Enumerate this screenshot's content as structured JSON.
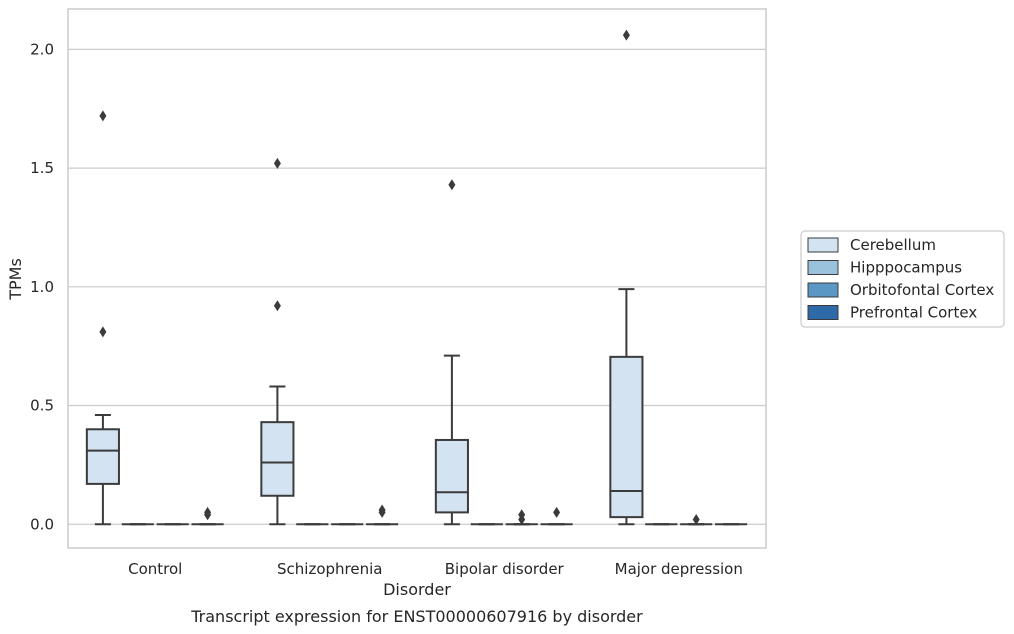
{
  "chart_data": {
    "type": "box",
    "caption": "Transcript expression for ENST00000607916 by disorder",
    "xlabel": "Disorder",
    "ylabel": "TPMs",
    "ylim": [
      -0.1,
      2.17
    ],
    "yticks": [
      0.0,
      0.5,
      1.0,
      1.5,
      2.0
    ],
    "ytick_labels": [
      "0.0",
      "0.5",
      "1.0",
      "1.5",
      "2.0"
    ],
    "grid": true,
    "legend_position": "right",
    "categories": [
      "Control",
      "Schizophrenia",
      "Bipolar disorder",
      "Major depression"
    ],
    "series": [
      {
        "name": "Cerebellum",
        "color": "#d3e3f2",
        "boxes": [
          {
            "whisker_low": 0.0,
            "q1": 0.17,
            "median": 0.31,
            "q3": 0.4,
            "whisker_high": 0.46,
            "outliers": [
              0.81,
              1.72
            ]
          },
          {
            "whisker_low": 0.0,
            "q1": 0.12,
            "median": 0.26,
            "q3": 0.43,
            "whisker_high": 0.58,
            "outliers": [
              0.92,
              1.52
            ]
          },
          {
            "whisker_low": 0.0,
            "q1": 0.05,
            "median": 0.135,
            "q3": 0.355,
            "whisker_high": 0.71,
            "outliers": [
              1.43
            ]
          },
          {
            "whisker_low": 0.0,
            "q1": 0.03,
            "median": 0.14,
            "q3": 0.705,
            "whisker_high": 0.99,
            "outliers": [
              2.06
            ]
          }
        ]
      },
      {
        "name": "Hipppocampus",
        "color": "#9bc2dc",
        "boxes": [
          {
            "whisker_low": 0.0,
            "q1": 0.0,
            "median": 0.0,
            "q3": 0.0,
            "whisker_high": 0.0,
            "outliers": []
          },
          {
            "whisker_low": 0.0,
            "q1": 0.0,
            "median": 0.0,
            "q3": 0.0,
            "whisker_high": 0.0,
            "outliers": []
          },
          {
            "whisker_low": 0.0,
            "q1": 0.0,
            "median": 0.0,
            "q3": 0.0,
            "whisker_high": 0.0,
            "outliers": []
          },
          {
            "whisker_low": 0.0,
            "q1": 0.0,
            "median": 0.0,
            "q3": 0.0,
            "whisker_high": 0.0,
            "outliers": []
          }
        ]
      },
      {
        "name": "Orbitofontal Cortex",
        "color": "#5a97c4",
        "boxes": [
          {
            "whisker_low": 0.0,
            "q1": 0.0,
            "median": 0.0,
            "q3": 0.0,
            "whisker_high": 0.0,
            "outliers": []
          },
          {
            "whisker_low": 0.0,
            "q1": 0.0,
            "median": 0.0,
            "q3": 0.0,
            "whisker_high": 0.0,
            "outliers": []
          },
          {
            "whisker_low": 0.0,
            "q1": 0.0,
            "median": 0.0,
            "q3": 0.0,
            "whisker_high": 0.0,
            "outliers": [
              0.02,
              0.04
            ]
          },
          {
            "whisker_low": 0.0,
            "q1": 0.0,
            "median": 0.0,
            "q3": 0.0,
            "whisker_high": 0.0,
            "outliers": [
              0.02
            ]
          }
        ]
      },
      {
        "name": "Prefrontal Cortex",
        "color": "#2e6aa8",
        "boxes": [
          {
            "whisker_low": 0.0,
            "q1": 0.0,
            "median": 0.0,
            "q3": 0.0,
            "whisker_high": 0.0,
            "outliers": [
              0.04,
              0.05
            ]
          },
          {
            "whisker_low": 0.0,
            "q1": 0.0,
            "median": 0.0,
            "q3": 0.0,
            "whisker_high": 0.0,
            "outliers": [
              0.05,
              0.06
            ]
          },
          {
            "whisker_low": 0.0,
            "q1": 0.0,
            "median": 0.0,
            "q3": 0.0,
            "whisker_high": 0.0,
            "outliers": [
              0.05
            ]
          },
          {
            "whisker_low": 0.0,
            "q1": 0.0,
            "median": 0.0,
            "q3": 0.0,
            "whisker_high": 0.0,
            "outliers": []
          }
        ]
      }
    ],
    "box_line_color": "#3b3b3b",
    "grid_color": "#cccccc",
    "frame_color": "#cccccc"
  }
}
